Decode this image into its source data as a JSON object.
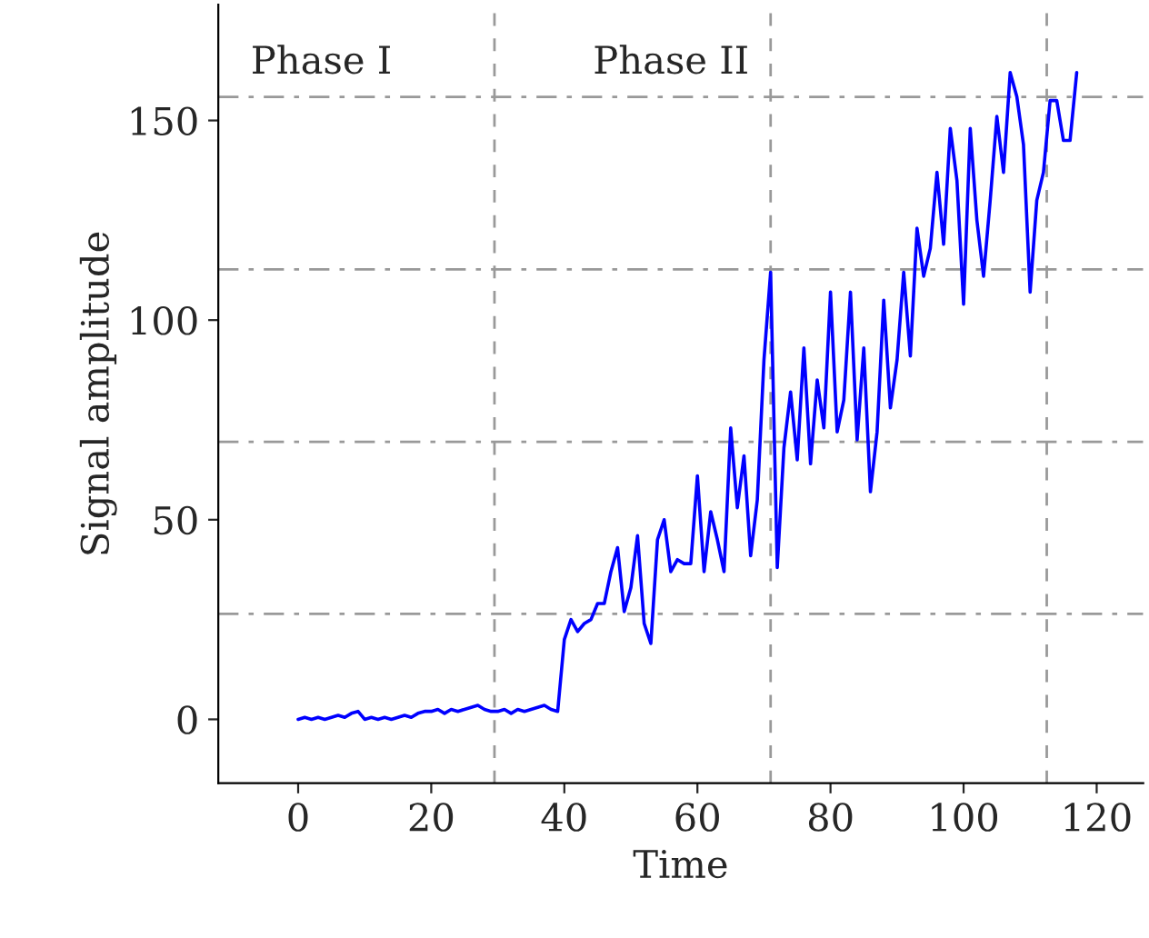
{
  "chart_data": {
    "type": "line",
    "xlabel": "Time",
    "ylabel": "Signal amplitude",
    "x": [
      0,
      1,
      2,
      3,
      4,
      5,
      6,
      7,
      8,
      9,
      10,
      11,
      12,
      13,
      14,
      15,
      16,
      17,
      18,
      19,
      20,
      21,
      22,
      23,
      24,
      25,
      26,
      27,
      28,
      29,
      30,
      31,
      32,
      33,
      34,
      35,
      36,
      37,
      38,
      39,
      40,
      41,
      42,
      43,
      44,
      45,
      46,
      47,
      48,
      49,
      50,
      51,
      52,
      53,
      54,
      55,
      56,
      57,
      58,
      59,
      60,
      61,
      62,
      63,
      64,
      65,
      66,
      67,
      68,
      69,
      70,
      71,
      72,
      73,
      74,
      75,
      76,
      77,
      78,
      79,
      80,
      81,
      82,
      83,
      84,
      85,
      86,
      87,
      88,
      89,
      90,
      91,
      92,
      93,
      94,
      95,
      96,
      97,
      98,
      99,
      100,
      101,
      102,
      103,
      104,
      105,
      106,
      107,
      108,
      109,
      110,
      111,
      112,
      113,
      114,
      115,
      116,
      117
    ],
    "series": [
      {
        "color": "#0000ff",
        "values": [
          0,
          0.5,
          0,
          0.5,
          0,
          0.5,
          1,
          0.5,
          1.5,
          2,
          0,
          0.5,
          0,
          0.5,
          0,
          0.5,
          1,
          0.5,
          1.5,
          2,
          2,
          2.5,
          1.5,
          2.5,
          2,
          2.5,
          3,
          3.5,
          2.5,
          2,
          2,
          2.5,
          1.5,
          2.5,
          2,
          2.5,
          3,
          3.5,
          2.5,
          2,
          20,
          25,
          22,
          24,
          25,
          29,
          29,
          37,
          43,
          27,
          33,
          46,
          24,
          19,
          45,
          50,
          37,
          40,
          39,
          39,
          61,
          37,
          52,
          45,
          37,
          73,
          53,
          66,
          41,
          55,
          90,
          112,
          38,
          68,
          82,
          65,
          93,
          64,
          85,
          73,
          107,
          72,
          80,
          107,
          70,
          93,
          57,
          72,
          105,
          78,
          90,
          112,
          91,
          123,
          111,
          118,
          137,
          119,
          148,
          135,
          104,
          148,
          125,
          111,
          130,
          151,
          137,
          162,
          156,
          144,
          107,
          130,
          137,
          155,
          155,
          145,
          145,
          162
        ]
      }
    ],
    "xlim": [
      -12,
      127
    ],
    "ylim": [
      -16,
      179
    ],
    "xticks": [
      0,
      20,
      40,
      60,
      80,
      100,
      120
    ],
    "yticks": [
      0,
      50,
      100,
      150
    ],
    "ref_lines": [
      {
        "axis": "x",
        "value": 29.5,
        "color": "#999999",
        "line_style": "dashed"
      },
      {
        "axis": "x",
        "value": 71,
        "color": "#999999",
        "line_style": "dashed"
      },
      {
        "axis": "x",
        "value": 112.5,
        "color": "#999999",
        "line_style": "dashed"
      },
      {
        "axis": "y",
        "value": 26.4,
        "color": "#999999",
        "line_style": "dashdot"
      },
      {
        "axis": "y",
        "value": 69.5,
        "color": "#999999",
        "line_style": "dashdot"
      },
      {
        "axis": "y",
        "value": 112.7,
        "color": "#999999",
        "line_style": "dashdot"
      },
      {
        "axis": "y",
        "value": 155.9,
        "color": "#999999",
        "line_style": "dashdot"
      }
    ],
    "annotations": [
      "Phase I",
      "Phase II"
    ],
    "marker": "none",
    "line_style": "solid"
  }
}
